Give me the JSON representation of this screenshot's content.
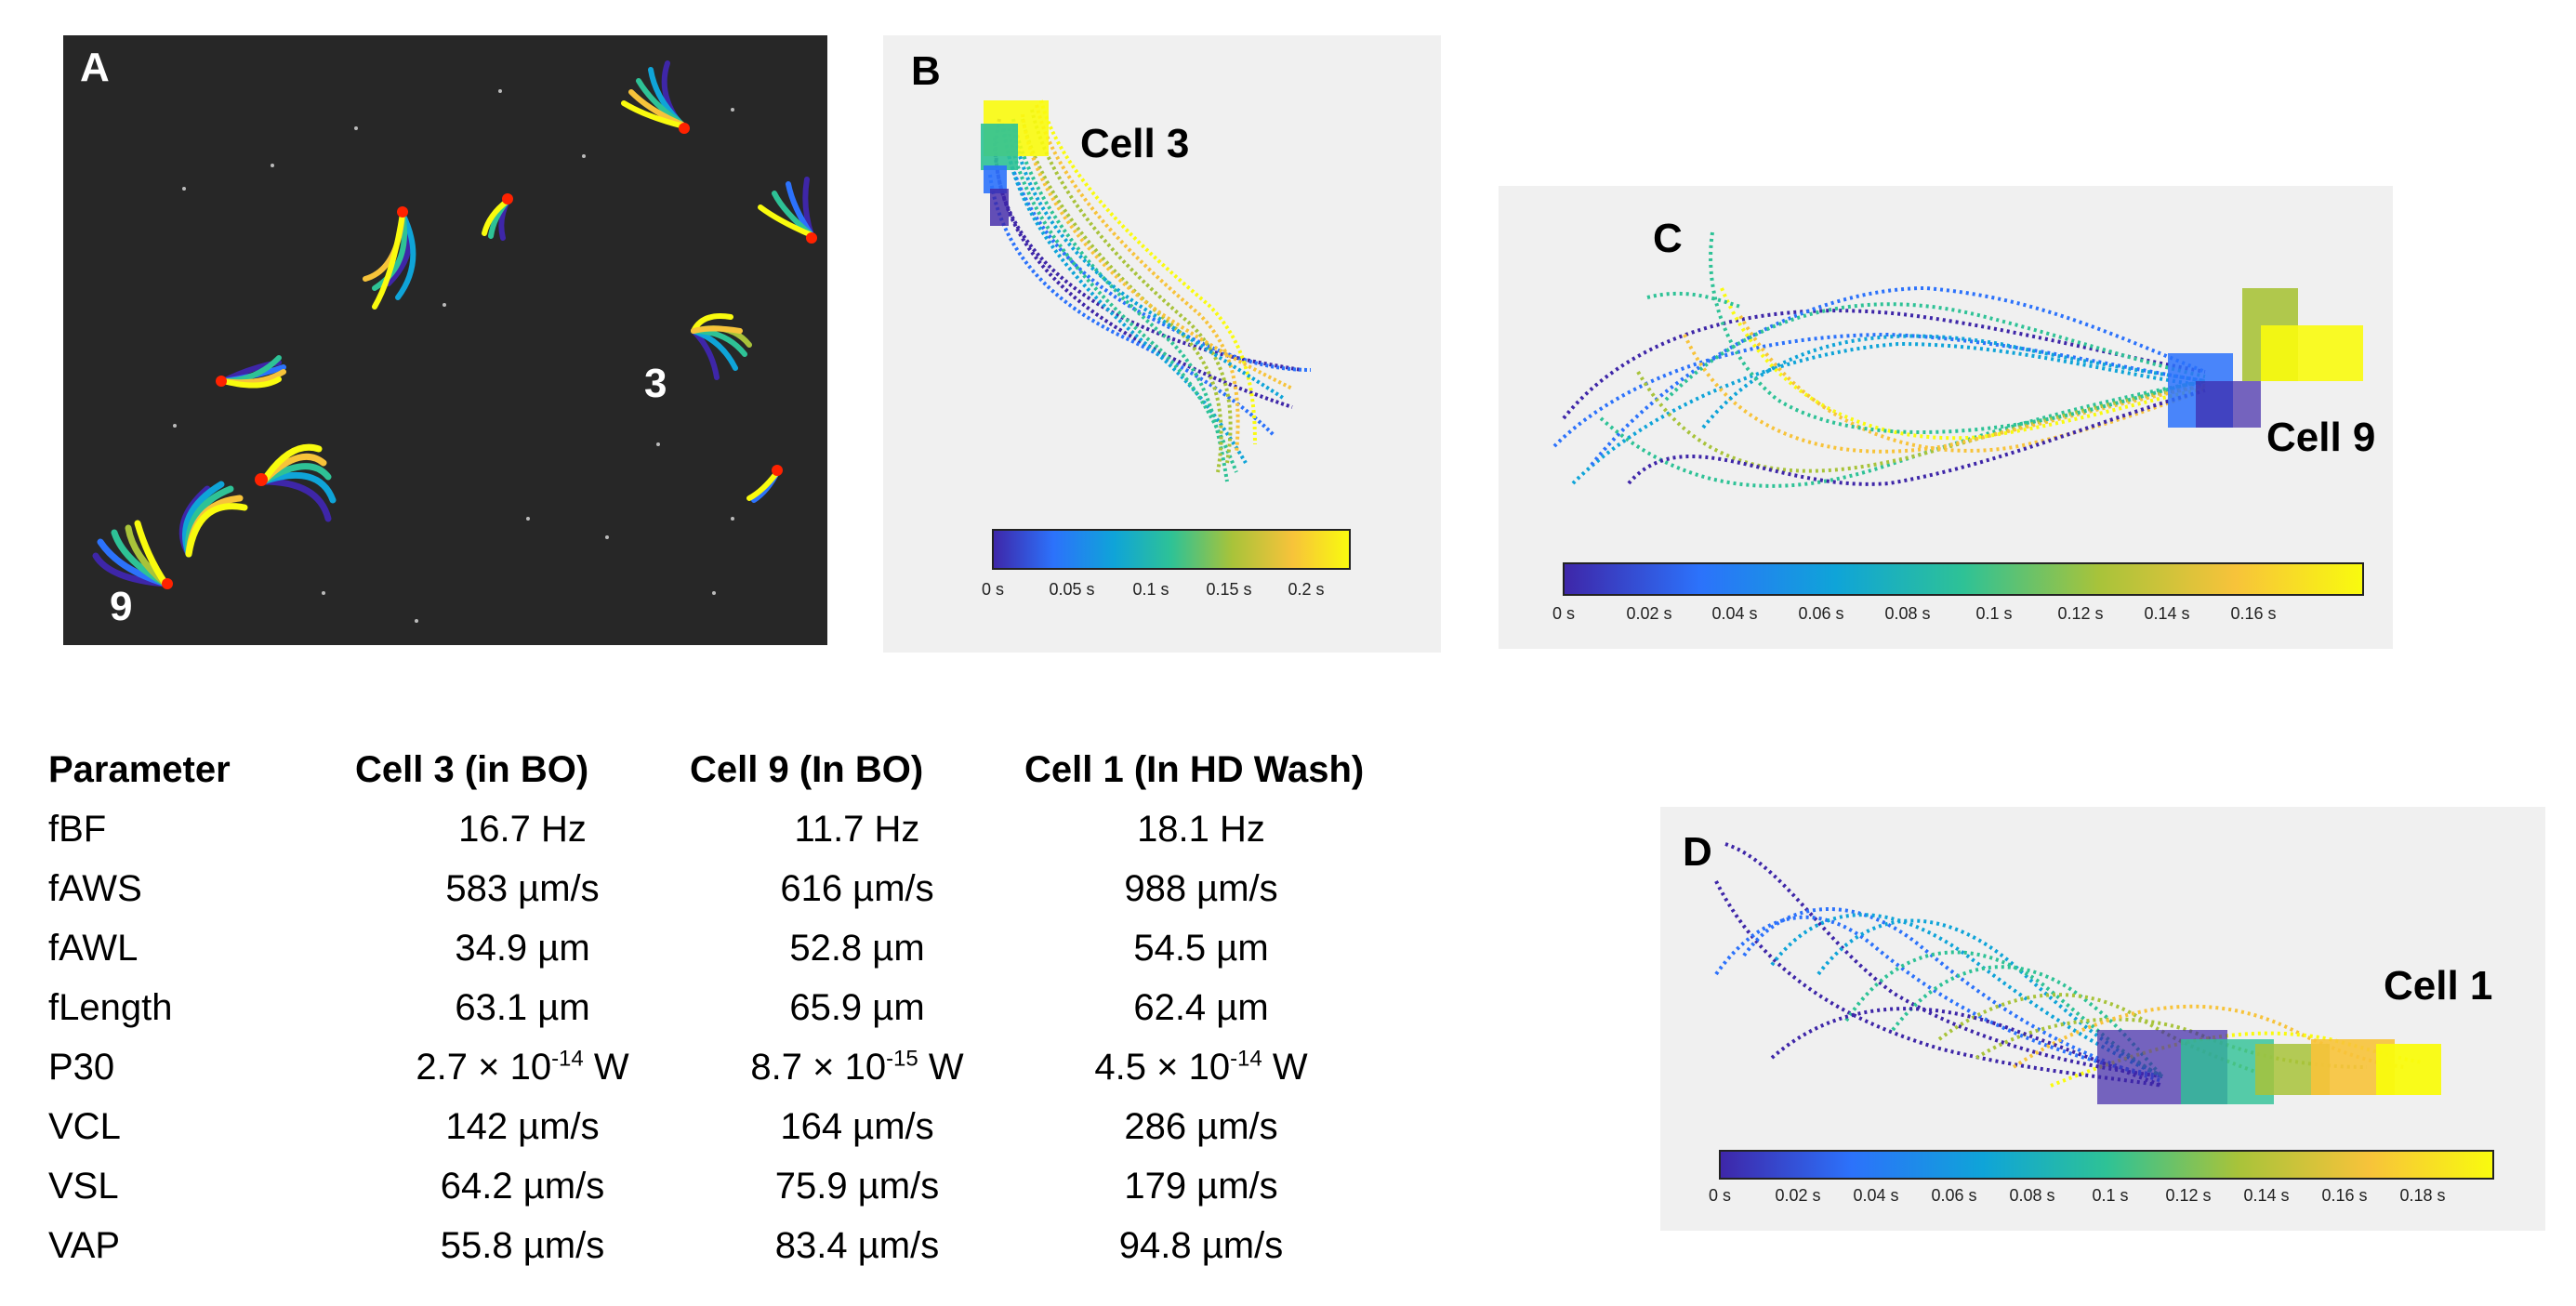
{
  "panels": {
    "A": {
      "label": "A",
      "cell_labels": [
        "3",
        "9"
      ]
    },
    "B": {
      "label": "B",
      "cell_name": "Cell 3",
      "colorbar_ticks": [
        "0 s",
        "0.05 s",
        "0.1 s",
        "0.15 s",
        "0.2 s"
      ]
    },
    "C": {
      "label": "C",
      "cell_name": "Cell 9",
      "colorbar_ticks": [
        "0 s",
        "0.02 s",
        "0.04 s",
        "0.06 s",
        "0.08 s",
        "0.1 s",
        "0.12 s",
        "0.14 s",
        "0.16 s"
      ]
    },
    "D": {
      "label": "D",
      "cell_name": "Cell 1",
      "colorbar_ticks": [
        "0 s",
        "0.02 s",
        "0.04 s",
        "0.06 s",
        "0.08 s",
        "0.1 s",
        "0.12 s",
        "0.14 s",
        "0.16 s",
        "0.18 s"
      ]
    }
  },
  "colors": {
    "parula": [
      "#3e26a8",
      "#2c72fb",
      "#0fa4d8",
      "#2ec296",
      "#a8c33a",
      "#f7c33a",
      "#f9fb0e"
    ]
  },
  "table": {
    "headers": [
      "Parameter",
      "Cell 3 (in BO)",
      "Cell 9 (In BO)",
      "Cell 1 (In HD Wash)"
    ],
    "rows": [
      {
        "param": "fBF",
        "c3": "16.7 Hz",
        "c9": "11.7 Hz",
        "c1": "18.1 Hz"
      },
      {
        "param": "fAWS",
        "c3": "583 µm/s",
        "c9": "616 µm/s",
        "c1": "988 µm/s"
      },
      {
        "param": "fAWL",
        "c3": "34.9 µm",
        "c9": "52.8 µm",
        "c1": "54.5 µm"
      },
      {
        "param": "fLength",
        "c3": "63.1 µm",
        "c9": "65.9 µm",
        "c1": "62.4 µm"
      },
      {
        "param": "P30",
        "c3": {
          "mantissa": "2.7 × 10",
          "exp": "-14",
          "unit": " W"
        },
        "c9": {
          "mantissa": "8.7 × 10",
          "exp": "-15",
          "unit": " W"
        },
        "c1": {
          "mantissa": "4.5 × 10",
          "exp": "-14",
          "unit": " W"
        }
      },
      {
        "param": "VCL",
        "c3": "142 µm/s",
        "c9": "164 µm/s",
        "c1": "286 µm/s"
      },
      {
        "param": "VSL",
        "c3": "64.2 µm/s",
        "c9": "75.9 µm/s",
        "c1": "179 µm/s"
      },
      {
        "param": "VAP",
        "c3": "55.8 µm/s",
        "c9": "83.4 µm/s",
        "c1": "94.8 µm/s"
      }
    ]
  }
}
